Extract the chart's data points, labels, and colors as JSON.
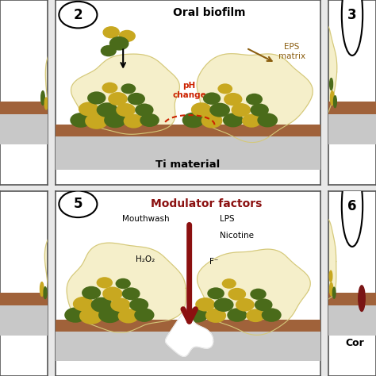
{
  "bg_color": "#e8e8e8",
  "panel_bg": "#ffffff",
  "border_color": "#555555",
  "ti_color": "#a0623a",
  "ti_bg": "#c8c8c8",
  "blob_fill": "#f5efca",
  "blob_edge": "#d4c87a",
  "green_dark": "#4a6b1a",
  "yellow_green": "#c8a820",
  "red_arrow_color": "#8b1010",
  "ph_color": "#cc2200",
  "eps_color": "#8b5e10",
  "title2": "Oral biofilm",
  "title5": "Modulator factors",
  "ti_label": "Ti material",
  "label_eps": "EPS\nmatrix",
  "label_ph": "pH\nchange",
  "label_mouthwash": "Mouthwash",
  "label_lps": "LPS",
  "label_nicotine": "Nicotine",
  "label_h2o2": "H₂O₂",
  "label_f": "F⁻",
  "num2": "2",
  "num3": "3",
  "num5": "5",
  "num6": "6",
  "label_cor": "Cor"
}
